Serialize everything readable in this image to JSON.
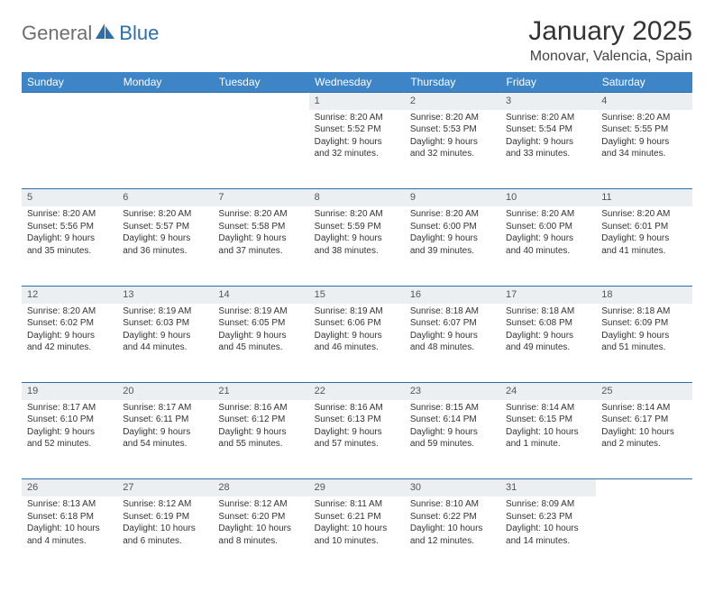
{
  "brand": {
    "part1": "General",
    "part2": "Blue"
  },
  "title": "January 2025",
  "location": "Monovar, Valencia, Spain",
  "colors": {
    "header_bg": "#3d85c6",
    "header_text": "#ffffff",
    "daynum_bg": "#eceff1",
    "rule": "#2c6fab",
    "brand_gray": "#6e6e6e",
    "brand_blue": "#2c6fab"
  },
  "weekdays": [
    "Sunday",
    "Monday",
    "Tuesday",
    "Wednesday",
    "Thursday",
    "Friday",
    "Saturday"
  ],
  "weeks": [
    [
      {
        "n": "",
        "sunrise": "",
        "sunset": "",
        "daylight": ""
      },
      {
        "n": "",
        "sunrise": "",
        "sunset": "",
        "daylight": ""
      },
      {
        "n": "",
        "sunrise": "",
        "sunset": "",
        "daylight": ""
      },
      {
        "n": "1",
        "sunrise": "Sunrise: 8:20 AM",
        "sunset": "Sunset: 5:52 PM",
        "daylight": "Daylight: 9 hours and 32 minutes."
      },
      {
        "n": "2",
        "sunrise": "Sunrise: 8:20 AM",
        "sunset": "Sunset: 5:53 PM",
        "daylight": "Daylight: 9 hours and 32 minutes."
      },
      {
        "n": "3",
        "sunrise": "Sunrise: 8:20 AM",
        "sunset": "Sunset: 5:54 PM",
        "daylight": "Daylight: 9 hours and 33 minutes."
      },
      {
        "n": "4",
        "sunrise": "Sunrise: 8:20 AM",
        "sunset": "Sunset: 5:55 PM",
        "daylight": "Daylight: 9 hours and 34 minutes."
      }
    ],
    [
      {
        "n": "5",
        "sunrise": "Sunrise: 8:20 AM",
        "sunset": "Sunset: 5:56 PM",
        "daylight": "Daylight: 9 hours and 35 minutes."
      },
      {
        "n": "6",
        "sunrise": "Sunrise: 8:20 AM",
        "sunset": "Sunset: 5:57 PM",
        "daylight": "Daylight: 9 hours and 36 minutes."
      },
      {
        "n": "7",
        "sunrise": "Sunrise: 8:20 AM",
        "sunset": "Sunset: 5:58 PM",
        "daylight": "Daylight: 9 hours and 37 minutes."
      },
      {
        "n": "8",
        "sunrise": "Sunrise: 8:20 AM",
        "sunset": "Sunset: 5:59 PM",
        "daylight": "Daylight: 9 hours and 38 minutes."
      },
      {
        "n": "9",
        "sunrise": "Sunrise: 8:20 AM",
        "sunset": "Sunset: 6:00 PM",
        "daylight": "Daylight: 9 hours and 39 minutes."
      },
      {
        "n": "10",
        "sunrise": "Sunrise: 8:20 AM",
        "sunset": "Sunset: 6:00 PM",
        "daylight": "Daylight: 9 hours and 40 minutes."
      },
      {
        "n": "11",
        "sunrise": "Sunrise: 8:20 AM",
        "sunset": "Sunset: 6:01 PM",
        "daylight": "Daylight: 9 hours and 41 minutes."
      }
    ],
    [
      {
        "n": "12",
        "sunrise": "Sunrise: 8:20 AM",
        "sunset": "Sunset: 6:02 PM",
        "daylight": "Daylight: 9 hours and 42 minutes."
      },
      {
        "n": "13",
        "sunrise": "Sunrise: 8:19 AM",
        "sunset": "Sunset: 6:03 PM",
        "daylight": "Daylight: 9 hours and 44 minutes."
      },
      {
        "n": "14",
        "sunrise": "Sunrise: 8:19 AM",
        "sunset": "Sunset: 6:05 PM",
        "daylight": "Daylight: 9 hours and 45 minutes."
      },
      {
        "n": "15",
        "sunrise": "Sunrise: 8:19 AM",
        "sunset": "Sunset: 6:06 PM",
        "daylight": "Daylight: 9 hours and 46 minutes."
      },
      {
        "n": "16",
        "sunrise": "Sunrise: 8:18 AM",
        "sunset": "Sunset: 6:07 PM",
        "daylight": "Daylight: 9 hours and 48 minutes."
      },
      {
        "n": "17",
        "sunrise": "Sunrise: 8:18 AM",
        "sunset": "Sunset: 6:08 PM",
        "daylight": "Daylight: 9 hours and 49 minutes."
      },
      {
        "n": "18",
        "sunrise": "Sunrise: 8:18 AM",
        "sunset": "Sunset: 6:09 PM",
        "daylight": "Daylight: 9 hours and 51 minutes."
      }
    ],
    [
      {
        "n": "19",
        "sunrise": "Sunrise: 8:17 AM",
        "sunset": "Sunset: 6:10 PM",
        "daylight": "Daylight: 9 hours and 52 minutes."
      },
      {
        "n": "20",
        "sunrise": "Sunrise: 8:17 AM",
        "sunset": "Sunset: 6:11 PM",
        "daylight": "Daylight: 9 hours and 54 minutes."
      },
      {
        "n": "21",
        "sunrise": "Sunrise: 8:16 AM",
        "sunset": "Sunset: 6:12 PM",
        "daylight": "Daylight: 9 hours and 55 minutes."
      },
      {
        "n": "22",
        "sunrise": "Sunrise: 8:16 AM",
        "sunset": "Sunset: 6:13 PM",
        "daylight": "Daylight: 9 hours and 57 minutes."
      },
      {
        "n": "23",
        "sunrise": "Sunrise: 8:15 AM",
        "sunset": "Sunset: 6:14 PM",
        "daylight": "Daylight: 9 hours and 59 minutes."
      },
      {
        "n": "24",
        "sunrise": "Sunrise: 8:14 AM",
        "sunset": "Sunset: 6:15 PM",
        "daylight": "Daylight: 10 hours and 1 minute."
      },
      {
        "n": "25",
        "sunrise": "Sunrise: 8:14 AM",
        "sunset": "Sunset: 6:17 PM",
        "daylight": "Daylight: 10 hours and 2 minutes."
      }
    ],
    [
      {
        "n": "26",
        "sunrise": "Sunrise: 8:13 AM",
        "sunset": "Sunset: 6:18 PM",
        "daylight": "Daylight: 10 hours and 4 minutes."
      },
      {
        "n": "27",
        "sunrise": "Sunrise: 8:12 AM",
        "sunset": "Sunset: 6:19 PM",
        "daylight": "Daylight: 10 hours and 6 minutes."
      },
      {
        "n": "28",
        "sunrise": "Sunrise: 8:12 AM",
        "sunset": "Sunset: 6:20 PM",
        "daylight": "Daylight: 10 hours and 8 minutes."
      },
      {
        "n": "29",
        "sunrise": "Sunrise: 8:11 AM",
        "sunset": "Sunset: 6:21 PM",
        "daylight": "Daylight: 10 hours and 10 minutes."
      },
      {
        "n": "30",
        "sunrise": "Sunrise: 8:10 AM",
        "sunset": "Sunset: 6:22 PM",
        "daylight": "Daylight: 10 hours and 12 minutes."
      },
      {
        "n": "31",
        "sunrise": "Sunrise: 8:09 AM",
        "sunset": "Sunset: 6:23 PM",
        "daylight": "Daylight: 10 hours and 14 minutes."
      },
      {
        "n": "",
        "sunrise": "",
        "sunset": "",
        "daylight": ""
      }
    ]
  ]
}
